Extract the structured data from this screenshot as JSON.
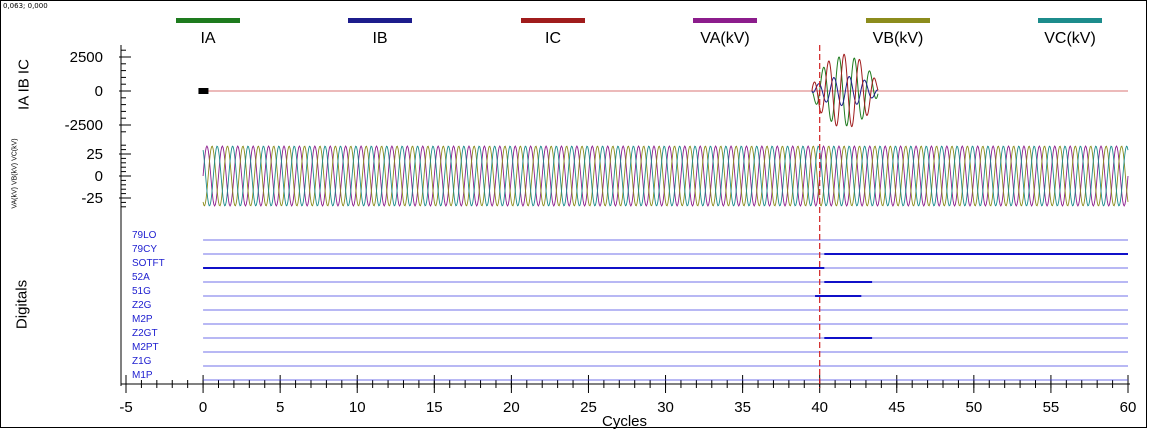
{
  "coordinate_readout": "0,063; 0,000",
  "legend": [
    {
      "label": "IA",
      "color": "#1e7b1e"
    },
    {
      "label": "IB",
      "color": "#1c1c8c"
    },
    {
      "label": "IC",
      "color": "#a01c1c"
    },
    {
      "label": "VA(kV)",
      "color": "#8c1c8c"
    },
    {
      "label": "VB(kV)",
      "color": "#8c8c1c"
    },
    {
      "label": "VC(kV)",
      "color": "#1c8c8c"
    }
  ],
  "chart_data": {
    "type": "line",
    "xlabel": "Cycles",
    "xlim": [
      -5,
      60
    ],
    "x_ticks": [
      -5,
      0,
      5,
      10,
      15,
      20,
      25,
      30,
      35,
      40,
      45,
      50,
      55,
      60
    ],
    "cursor_x": 40,
    "panels": [
      {
        "ylabel": "IA IB IC",
        "ylim": [
          -2500,
          2500
        ],
        "y_ticks": [
          2500,
          0,
          -2500
        ],
        "series": [
          {
            "name": "IA",
            "pre_fault_amplitude": 0,
            "fault_start": 39.5,
            "fault_end": 43.8,
            "fault_peak": 2700
          },
          {
            "name": "IB",
            "pre_fault_amplitude": 0,
            "fault_start": 39.5,
            "fault_end": 43.8,
            "fault_peak": 2700
          },
          {
            "name": "IC",
            "pre_fault_amplitude": 0,
            "fault_start": 39.5,
            "fault_end": 43.8,
            "fault_peak": 2700
          }
        ]
      },
      {
        "ylabel": "VA(kV) VB(kV) VC(kV)",
        "ylim": [
          -25,
          25
        ],
        "y_ticks": [
          25,
          0,
          -25
        ],
        "series": [
          {
            "name": "VA(kV)",
            "amplitude": 34
          },
          {
            "name": "VB(kV)",
            "amplitude": 34
          },
          {
            "name": "VC(kV)",
            "amplitude": 34
          }
        ]
      }
    ],
    "digitals": {
      "ylabel": "Digitals",
      "channels": [
        {
          "name": "79LO",
          "high": []
        },
        {
          "name": "79CY",
          "high": [
            [
              40.3,
              60
            ]
          ]
        },
        {
          "name": "SOTFT",
          "high": [
            [
              0,
              40.3
            ]
          ]
        },
        {
          "name": "52A",
          "high": [
            [
              40.3,
              43.4
            ]
          ]
        },
        {
          "name": "51G",
          "high": [
            [
              39.7,
              42.7
            ]
          ]
        },
        {
          "name": "Z2G",
          "high": []
        },
        {
          "name": "M2P",
          "high": []
        },
        {
          "name": "Z2GT",
          "high": [
            [
              40.3,
              43.4
            ]
          ]
        },
        {
          "name": "M2PT",
          "high": []
        },
        {
          "name": "Z1G",
          "high": []
        },
        {
          "name": "M1P",
          "high": []
        }
      ]
    }
  }
}
